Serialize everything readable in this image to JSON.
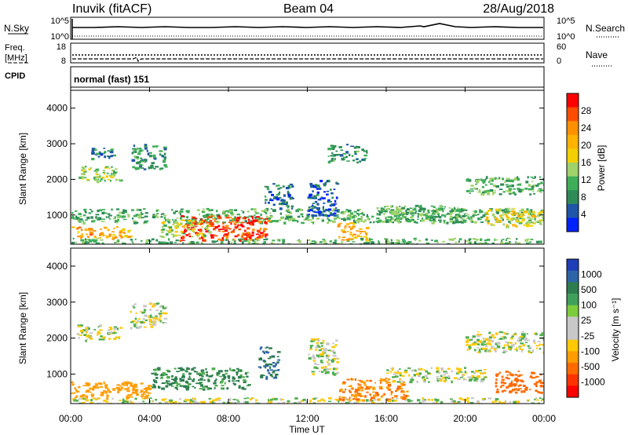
{
  "header": {
    "station": "Inuvik (fitACF)",
    "beam": "Beam 04",
    "date": "28/Aug/2018"
  },
  "noise_panel": {
    "left_label": "N.Sky",
    "right_label": "N.Search",
    "left_ticks": [
      "10^5",
      "10^0"
    ],
    "right_ticks": [
      "10^5",
      "10^0"
    ]
  },
  "freq_panel": {
    "left_label_1": "Freq.",
    "left_label_2": "[MHz]",
    "right_label": "Nave",
    "left_ticks": [
      "18",
      "8"
    ],
    "right_ticks": [
      "60",
      "0"
    ]
  },
  "cpid": {
    "label": "CPID",
    "value": "normal (fast) 151"
  },
  "x_axis": {
    "label": "Time UT",
    "ticks": [
      "00:00",
      "04:00",
      "08:00",
      "12:00",
      "16:00",
      "20:00",
      "00:00"
    ]
  },
  "power_panel": {
    "ylabel": "Slant Range [km]",
    "yticks": [
      "4000",
      "3000",
      "2000",
      "1000"
    ],
    "colorbar_label": "Power [dB]",
    "colorbar_ticks": [
      "28",
      "24",
      "20",
      "16",
      "12",
      "8",
      "4"
    ],
    "colorbar_colors": [
      "#ff0000",
      "#ff4d00",
      "#ff9100",
      "#ffb300",
      "#f2d000",
      "#9fd26a",
      "#3fae5a",
      "#2e8b57",
      "#1f56a8",
      "#0022ff"
    ]
  },
  "velocity_panel": {
    "ylabel": "Slant Range [km]",
    "yticks": [
      "4000",
      "3000",
      "2000",
      "1000"
    ],
    "colorbar_label": "Velocity [m s⁻¹]",
    "colorbar_ticks": [
      "1000",
      "500",
      "100",
      "25",
      "-25",
      "-100",
      "-500",
      "-1000"
    ],
    "colorbar_colors": [
      "#1f3fb8",
      "#2d64a8",
      "#2e7d4f",
      "#3fa05a",
      "#7ccd3c",
      "#c8c8c8",
      "#c8c8c8",
      "#ffc800",
      "#ff9c00",
      "#ff6a00",
      "#ff3300",
      "#ff0000"
    ]
  },
  "chart_data": {
    "type": "heatmap",
    "x_range_hours": [
      0,
      24
    ],
    "y_range_km": [
      180,
      4500
    ],
    "series": [
      {
        "name": "Power [dB]",
        "regions": [
          {
            "t0": 0.0,
            "t1": 24.0,
            "r0": 180,
            "r1": 360,
            "value": 12
          },
          {
            "t0": 0.0,
            "t1": 3.0,
            "r0": 360,
            "r1": 700,
            "value": 22
          },
          {
            "t0": 0.0,
            "t1": 24.0,
            "r0": 800,
            "r1": 1200,
            "value": 12
          },
          {
            "t0": 0.3,
            "t1": 2.5,
            "r0": 1950,
            "r1": 2400,
            "value": 14
          },
          {
            "t0": 1.0,
            "t1": 2.3,
            "r0": 2600,
            "r1": 2900,
            "value": 8
          },
          {
            "t0": 3.0,
            "t1": 4.8,
            "r0": 2300,
            "r1": 3000,
            "value": 10
          },
          {
            "t0": 5.5,
            "t1": 10.0,
            "r0": 300,
            "r1": 1000,
            "value": 28
          },
          {
            "t0": 4.5,
            "t1": 7.0,
            "r0": 400,
            "r1": 900,
            "value": 16
          },
          {
            "t0": 9.8,
            "t1": 11.2,
            "r0": 1200,
            "r1": 1900,
            "value": 8
          },
          {
            "t0": 12.0,
            "t1": 13.5,
            "r0": 1000,
            "r1": 2000,
            "value": 6
          },
          {
            "t0": 13.0,
            "t1": 15.0,
            "r0": 2500,
            "r1": 3000,
            "value": 10
          },
          {
            "t0": 13.5,
            "t1": 15.0,
            "r0": 300,
            "r1": 800,
            "value": 22
          },
          {
            "t0": 15.5,
            "t1": 20.0,
            "r0": 800,
            "r1": 1300,
            "value": 12
          },
          {
            "t0": 20.0,
            "t1": 24.0,
            "r0": 1600,
            "r1": 2100,
            "value": 12
          },
          {
            "t0": 21.0,
            "t1": 24.0,
            "r0": 700,
            "r1": 1200,
            "value": 18
          }
        ]
      },
      {
        "name": "Velocity [m s⁻¹]",
        "regions": [
          {
            "t0": 0.0,
            "t1": 24.0,
            "r0": 180,
            "r1": 360,
            "value": 0
          },
          {
            "t0": 0.0,
            "t1": 4.0,
            "r0": 360,
            "r1": 800,
            "value": -200
          },
          {
            "t0": 0.3,
            "t1": 2.5,
            "r0": 1950,
            "r1": 2400,
            "value": 0
          },
          {
            "t0": 3.0,
            "t1": 4.8,
            "r0": 2300,
            "r1": 3000,
            "value": 0
          },
          {
            "t0": 4.0,
            "t1": 9.0,
            "r0": 600,
            "r1": 1200,
            "value": 150
          },
          {
            "t0": 9.5,
            "t1": 10.5,
            "r0": 900,
            "r1": 1800,
            "value": 300
          },
          {
            "t0": 12.0,
            "t1": 13.5,
            "r0": 1000,
            "r1": 2000,
            "value": 0
          },
          {
            "t0": 13.5,
            "t1": 17.0,
            "r0": 300,
            "r1": 900,
            "value": -300
          },
          {
            "t0": 16.0,
            "t1": 21.0,
            "r0": 800,
            "r1": 1200,
            "value": 0
          },
          {
            "t0": 20.0,
            "t1": 24.0,
            "r0": 1600,
            "r1": 2200,
            "value": 0
          },
          {
            "t0": 21.5,
            "t1": 24.0,
            "r0": 500,
            "r1": 1100,
            "value": -400
          }
        ]
      }
    ]
  }
}
